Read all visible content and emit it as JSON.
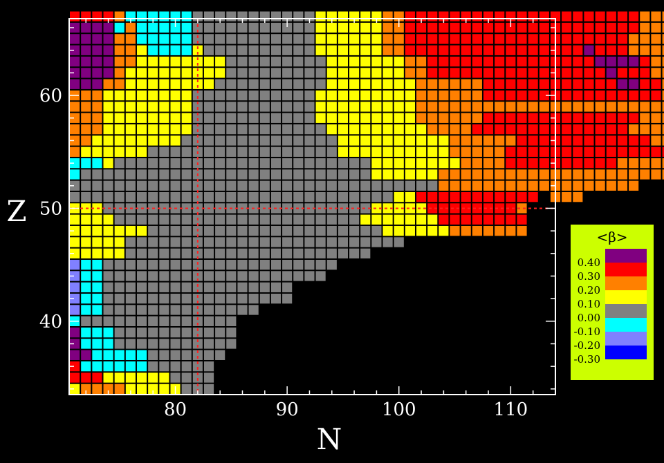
{
  "chart_data": {
    "type": "heatmap",
    "xlabel": "N",
    "ylabel": "Z",
    "xlim": [
      70.5,
      114
    ],
    "ylim": [
      33.5,
      66.8
    ],
    "x_ticks": [
      "80",
      "90",
      "100",
      "110"
    ],
    "y_ticks": [
      "40",
      "50",
      "60"
    ],
    "magic_lines": {
      "N": 82,
      "Z": 50
    },
    "legend": {
      "title": "<β>",
      "labels": [
        "0.40",
        "0.30",
        "0.20",
        "0.10",
        "0.00",
        "-0.10",
        "-0.20",
        "-0.30"
      ]
    },
    "colors": {
      "P": "#800080",
      "R": "#ff0000",
      "O": "#ff8000",
      "Y": "#ffff00",
      "G": "#808080",
      "C": "#00ffff",
      "L": "#8080ff",
      "B": "#0000ff",
      "legend_bg": "#ccff00",
      "magic_line": "#ff2020"
    },
    "z_min": 34,
    "grid_note": "rows from Z=34 upward; column i corresponds to N = 71 + i",
    "rows": [
      "YOOOOYYYYYGGG.....",
      "RRRYYYYYYGGGG.....",
      "RCCCCCCGGGGGG.....",
      "PPCCCCCGGGGGGG.....",
      "PCCCGGGGGGGGGGG....",
      "PCCCGGGGGGGGGGG....",
      "CGGGGGGGGGGGGGG....",
      "LCCGGGGGGGGGGGGGG...",
      "LCCGGGGGGGGGGGGGGGGG..",
      "LCCGGGGGGGGGGGGGGGGG..",
      "LCCGGGGGGGGGGGGGGGGGGGG..",
      "LCCGGGGGGGGGGGGGGGGGGGGG..",
      "YYYYYGGGGGGGGGGGGGGGGGGGGGG..",
      "YYYYYGGGGGGGGGGGGGGGGGGGGGGGGG..",
      "YYYYYYYGGGGGGGGGGGGGGGGGGGGGYYYYYYOOOOOOO",
      "YYYYGGGGGGGGGGGGGGGGGGGGGGYYYYYYYRRRRRRRR",
      "YYYGGGGGGGGGGGGGGGGGGGGGGGGYYYYYRRRRRRRRO",
      "GGGGGGGGGGGGGGGGGGGGGGGGGGGGGYYRRRRRRRRRRR.OOO",
      "GGGGGGGGGGGGGGGGGGGGGGGGGGGGGGGGGOOOOOOOOOOOOOOOOOO",
      "CGGGGGGGGGGGGGGGGGGGGGGGGGGYYYYYYOOOOOOOOOOOOOOOOOOOOOOO",
      "CCCYGGGGGGGGGGGGGGGGGGGGGGGYYYYYYYYOOOORRRRRRRRRROOOOOOO",
      "OYYYYYYGGGGGGGGGGGGGGGGGYYYYYYYYYYOOOOORRRRRRRRRRRRRRRRR",
      "OOYYYYYYYYGGGGGGGGGGGGGGYYYYYYYYYYOOOOOORRRRRRRRRRRROOOO",
      "OOOYYYYYYYYGGGGGGGGGGGGYYYYYYYYYOOOORRRRRRRRRRRRRROOOOOOOOO",
      "OOOYYYYYYYYGGGGGGGGGGGYYYYYYYYYOOOOOORRRRRRRRRRRRRROOOOOOOO",
      "OOOYYYYYYYYGGGGGGGGGGGYYYYYYYYYOOOOOOOOOOOOOOOOOOOOOOOOOOO",
      "OOOYYYYYYYYGGGGGGGGGGGYYYYYYYYYOOOOOORRRRRRRRRRRRRRRROOOOO",
      "PPPOOYYYYYYYYGGGGGGGGGGYYYYYYYYOOOOOORRRRRRRRRRRRPPRROOOOOO",
      "PPPPOYYYYYYYYYGGGGGGGGGYYYYYYYOORRRRRRRRRRRRRRRRPRRROOOOO",
      "PPPPOOYYYYYYYYGGGGGGGGGYYYYYYYOORRRRRRRRRRRRRRRPPPPROOOOOO",
      "PPPPOOYCCCCYGGGGGGGGGGYYYYYYOORRRRRRRRRRRRRRRRPRRROOOOOO",
      "PPPPOOCCCCCGGGGGGGGGGGYYYYYYOORRRRRRRRRRRRRRRRRRRROOOOO",
      "PPPPCOCCCCCGGGGGGGGGGGYYYYYYOORRRRRRRRRRRRRRRRRRRRROOOOO",
      "RRRROCCCCCCGGGGGGGGGGGYYYYYYOORRRRRRRRRRRRRRRRRRRRROOOOO"
    ]
  }
}
